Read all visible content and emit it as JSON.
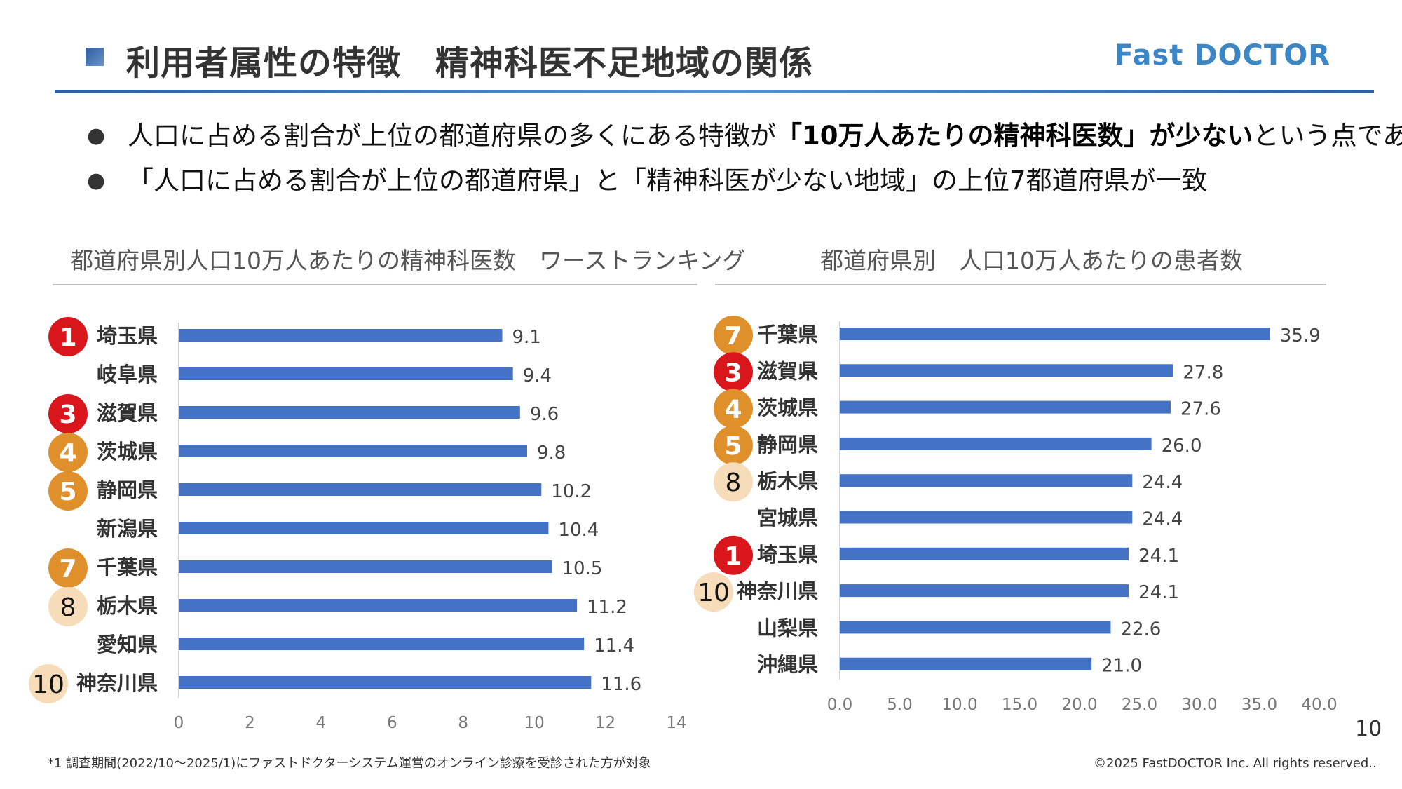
{
  "header": {
    "title": "利用者属性の特徴　精神科医不足地域の関係",
    "brand": "Fast DOCTOR"
  },
  "bullets": [
    {
      "pre": "人口に占める割合が上位の都道府県の多くにある特徴が",
      "bold": "「10万人あたりの精神科医数」が少ない",
      "post": "という点である"
    },
    {
      "pre": "「人口に占める割合が上位の都道府県」と「精神科医が少ない地域」の上位7都道府県が一致",
      "bold": "",
      "post": ""
    }
  ],
  "badge_colors": {
    "red": "#d9161c",
    "orange": "#e0902a",
    "beige": "#f6dcb8"
  },
  "bar_color": "#4472c4",
  "chart_data": [
    {
      "type": "bar",
      "orientation": "horizontal",
      "title": "都道府県別人口10万人あたりの精神科医数　ワーストランキング",
      "categories": [
        "埼玉県",
        "岐阜県",
        "滋賀県",
        "茨城県",
        "静岡県",
        "新潟県",
        "千葉県",
        "栃木県",
        "愛知県",
        "神奈川県"
      ],
      "values": [
        9.1,
        9.4,
        9.6,
        9.8,
        10.2,
        10.4,
        10.5,
        11.2,
        11.4,
        11.6
      ],
      "badges": [
        "1",
        "",
        "3",
        "4",
        "5",
        "",
        "7",
        "8",
        "",
        "10"
      ],
      "badge_styles": [
        "red",
        "",
        "red",
        "orange",
        "orange",
        "",
        "orange",
        "beige",
        "",
        "beige"
      ],
      "xlim": [
        0,
        14
      ],
      "xticks": [
        "0",
        "2",
        "4",
        "6",
        "8",
        "10",
        "12",
        "14"
      ],
      "grid": false
    },
    {
      "type": "bar",
      "orientation": "horizontal",
      "title": "都道府県別　人口10万人あたりの患者数",
      "categories": [
        "千葉県",
        "滋賀県",
        "茨城県",
        "静岡県",
        "栃木県",
        "宮城県",
        "埼玉県",
        "神奈川県",
        "山梨県",
        "沖縄県"
      ],
      "values": [
        35.9,
        27.8,
        27.6,
        26.0,
        24.4,
        24.4,
        24.1,
        24.1,
        22.6,
        21.0
      ],
      "labels": [
        "35.9",
        "27.8",
        "27.6",
        "26.0",
        "24.4",
        "24.4",
        "24.1",
        "24.1",
        "22.6",
        "21.0"
      ],
      "badges": [
        "7",
        "3",
        "4",
        "5",
        "8",
        "",
        "1",
        "10",
        "",
        ""
      ],
      "badge_styles": [
        "orange",
        "red",
        "orange",
        "orange",
        "beige",
        "",
        "red",
        "beige",
        "",
        ""
      ],
      "xlim": [
        0,
        40
      ],
      "xticks": [
        "0.0",
        "5.0",
        "10.0",
        "15.0",
        "20.0",
        "25.0",
        "30.0",
        "35.0",
        "40.0"
      ],
      "grid": false
    }
  ],
  "footer": {
    "footnote": "*1 調査期間(2022/10～2025/1)にファストドクターシステム運営のオンライン診療を受診された方が対象",
    "copyright": "©2025 FastDOCTOR Inc. All rights reserved..",
    "page_number": "10"
  }
}
